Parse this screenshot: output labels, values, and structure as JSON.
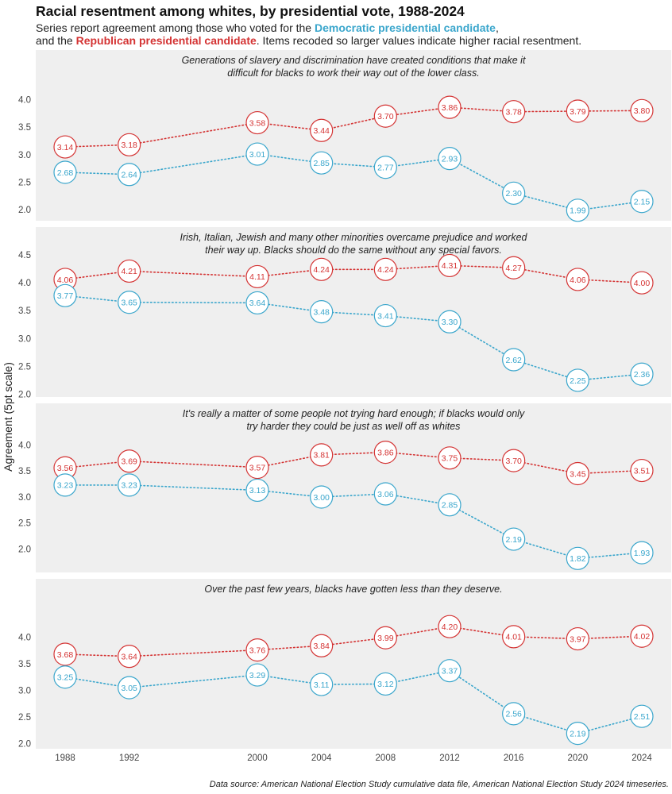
{
  "title": "Racial resentment among whites, by presidential vote, 1988-2024",
  "subtitle": {
    "line1_before": "Series report agreement among those who voted for the ",
    "dem_label": "Democratic presidential candidate",
    "line1_after": ",",
    "line2_before": "and the ",
    "rep_label": "Republican presidential candidate",
    "line2_after": ". Items recoded so larger values indicate higher racial resentment."
  },
  "ylabel": "Agreement (5pt scale)",
  "source": "Data source: American National Election Study cumulative data file, American National Election Study 2024 timeseries.",
  "colors": {
    "democratic": "#3aa6cc",
    "republican": "#d43333",
    "panel_bg": "#efefef"
  },
  "chart_data": {
    "type": "line",
    "x": [
      1988,
      1992,
      2000,
      2004,
      2008,
      2012,
      2016,
      2020,
      2024
    ],
    "xticks": [
      "1988",
      "1992",
      "2000",
      "2004",
      "2008",
      "2012",
      "2016",
      "2020",
      "2024"
    ],
    "panels": [
      {
        "caption": "Generations of slavery and discrimination have created conditions that make it difficult for blacks to work their way out of the lower class.",
        "yticks": [
          "2.0",
          "2.5",
          "3.0",
          "3.5",
          "4.0"
        ],
        "yrange": [
          1.8,
          4.9
        ],
        "series": [
          {
            "party": "republican",
            "values": [
              3.14,
              3.18,
              3.58,
              3.44,
              3.7,
              3.86,
              3.78,
              3.79,
              3.8
            ],
            "labels": [
              "3.14",
              "3.18",
              "3.58",
              "3.44",
              "3.70",
              "3.86",
              "3.78",
              "3.79",
              "3.80"
            ]
          },
          {
            "party": "democratic",
            "values": [
              2.68,
              2.64,
              3.01,
              2.85,
              2.77,
              2.93,
              2.3,
              1.99,
              2.15
            ],
            "labels": [
              "2.68",
              "2.64",
              "3.01",
              "2.85",
              "2.77",
              "2.93",
              "2.30",
              "1.99",
              "2.15"
            ]
          }
        ]
      },
      {
        "caption": "Irish, Italian, Jewish and many other minorities overcame prejudice and worked their way up. Blacks should do the same without any special favors.",
        "yticks": [
          "2.0",
          "2.5",
          "3.0",
          "3.5",
          "4.0",
          "4.5"
        ],
        "yrange": [
          1.95,
          5.0
        ],
        "series": [
          {
            "party": "republican",
            "values": [
              4.06,
              4.21,
              4.11,
              4.24,
              4.24,
              4.31,
              4.27,
              4.06,
              4.0
            ],
            "labels": [
              "4.06",
              "4.21",
              "4.11",
              "4.24",
              "4.24",
              "4.31",
              "4.27",
              "4.06",
              "4.00"
            ]
          },
          {
            "party": "democratic",
            "values": [
              3.77,
              3.65,
              3.64,
              3.48,
              3.41,
              3.3,
              2.62,
              2.25,
              2.36
            ],
            "labels": [
              "3.77",
              "3.65",
              "3.64",
              "3.48",
              "3.41",
              "3.30",
              "2.62",
              "2.25",
              "2.36"
            ]
          }
        ]
      },
      {
        "caption": "It's really a matter of some people not trying hard enough; if blacks would only try harder they could be just as well off as whites",
        "yticks": [
          "2.0",
          "2.5",
          "3.0",
          "3.5",
          "4.0"
        ],
        "yrange": [
          1.55,
          4.8
        ],
        "series": [
          {
            "party": "republican",
            "values": [
              3.56,
              3.69,
              3.57,
              3.81,
              3.86,
              3.75,
              3.7,
              3.45,
              3.51
            ],
            "labels": [
              "3.56",
              "3.69",
              "3.57",
              "3.81",
              "3.86",
              "3.75",
              "3.70",
              "3.45",
              "3.51"
            ]
          },
          {
            "party": "democratic",
            "values": [
              3.23,
              3.23,
              3.13,
              3.0,
              3.06,
              2.85,
              2.19,
              1.82,
              1.93
            ],
            "labels": [
              "3.23",
              "3.23",
              "3.13",
              "3.00",
              "3.06",
              "2.85",
              "2.19",
              "1.82",
              "1.93"
            ]
          }
        ]
      },
      {
        "caption": "Over the past few years, blacks have gotten less than they deserve.",
        "yticks": [
          "2.0",
          "2.5",
          "3.0",
          "3.5",
          "4.0"
        ],
        "yrange": [
          1.9,
          5.1
        ],
        "series": [
          {
            "party": "republican",
            "values": [
              3.68,
              3.64,
              3.76,
              3.84,
              3.99,
              4.2,
              4.01,
              3.97,
              4.02
            ],
            "labels": [
              "3.68",
              "3.64",
              "3.76",
              "3.84",
              "3.99",
              "4.20",
              "4.01",
              "3.97",
              "4.02"
            ]
          },
          {
            "party": "democratic",
            "values": [
              3.25,
              3.05,
              3.29,
              3.11,
              3.12,
              3.37,
              2.56,
              2.19,
              2.51
            ],
            "labels": [
              "3.25",
              "3.05",
              "3.29",
              "3.11",
              "3.12",
              "3.37",
              "2.56",
              "2.19",
              "2.51"
            ]
          }
        ]
      }
    ]
  }
}
